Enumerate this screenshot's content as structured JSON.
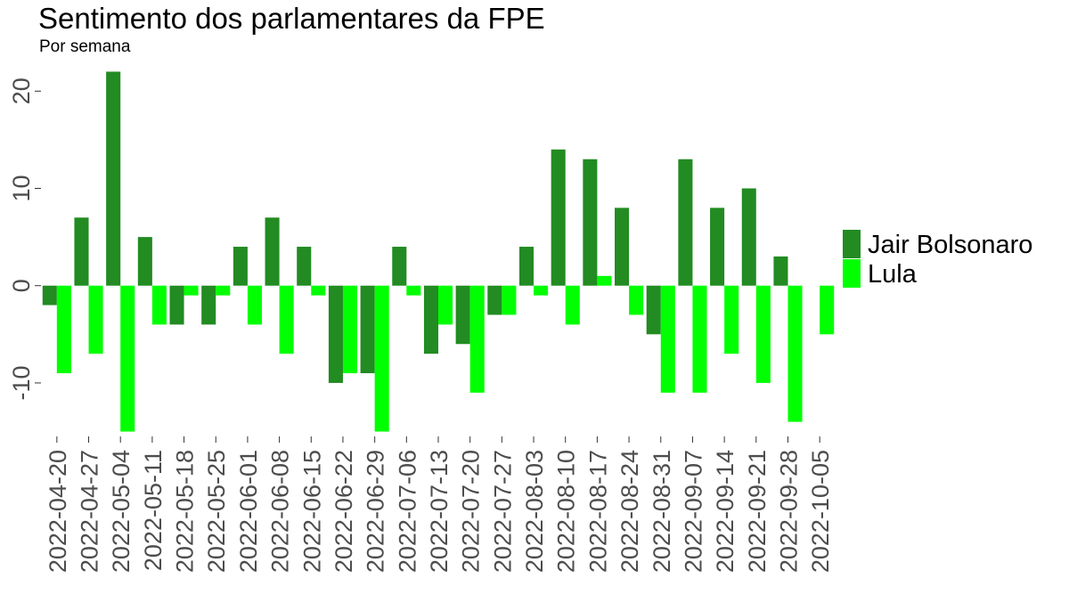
{
  "chart_data": {
    "type": "bar",
    "title": "Sentimento dos parlamentares da FPE",
    "subtitle": "Por semana",
    "xlabel": "",
    "ylabel": "",
    "categories": [
      "2022-04-20",
      "2022-04-27",
      "2022-05-04",
      "2022-05-11",
      "2022-05-18",
      "2022-05-25",
      "2022-06-01",
      "2022-06-08",
      "2022-06-15",
      "2022-06-22",
      "2022-06-29",
      "2022-07-06",
      "2022-07-13",
      "2022-07-20",
      "2022-07-27",
      "2022-08-03",
      "2022-08-10",
      "2022-08-17",
      "2022-08-24",
      "2022-08-31",
      "2022-09-07",
      "2022-09-14",
      "2022-09-21",
      "2022-09-28",
      "2022-10-05"
    ],
    "series": [
      {
        "name": "Jair Bolsonaro",
        "color": "#228B22",
        "values": [
          -2,
          7,
          22,
          5,
          -4,
          -4,
          4,
          7,
          4,
          -10,
          -9,
          4,
          -7,
          -6,
          -3,
          4,
          14,
          13,
          8,
          -5,
          13,
          8,
          10,
          3,
          null
        ]
      },
      {
        "name": "Lula",
        "color": "#00FF00",
        "values": [
          -9,
          -7,
          -15,
          -4,
          -1,
          -1,
          -4,
          -7,
          -1,
          -9,
          -15,
          -1,
          -4,
          -11,
          -3,
          -1,
          -4,
          1,
          -3,
          -11,
          -11,
          -7,
          -10,
          -14,
          -5
        ]
      }
    ],
    "ylim": [
      -15.5,
      22.5
    ],
    "yticks": [
      -10,
      0,
      10,
      20
    ],
    "grid": false,
    "legend_position": "right",
    "barmode": "grouped"
  }
}
